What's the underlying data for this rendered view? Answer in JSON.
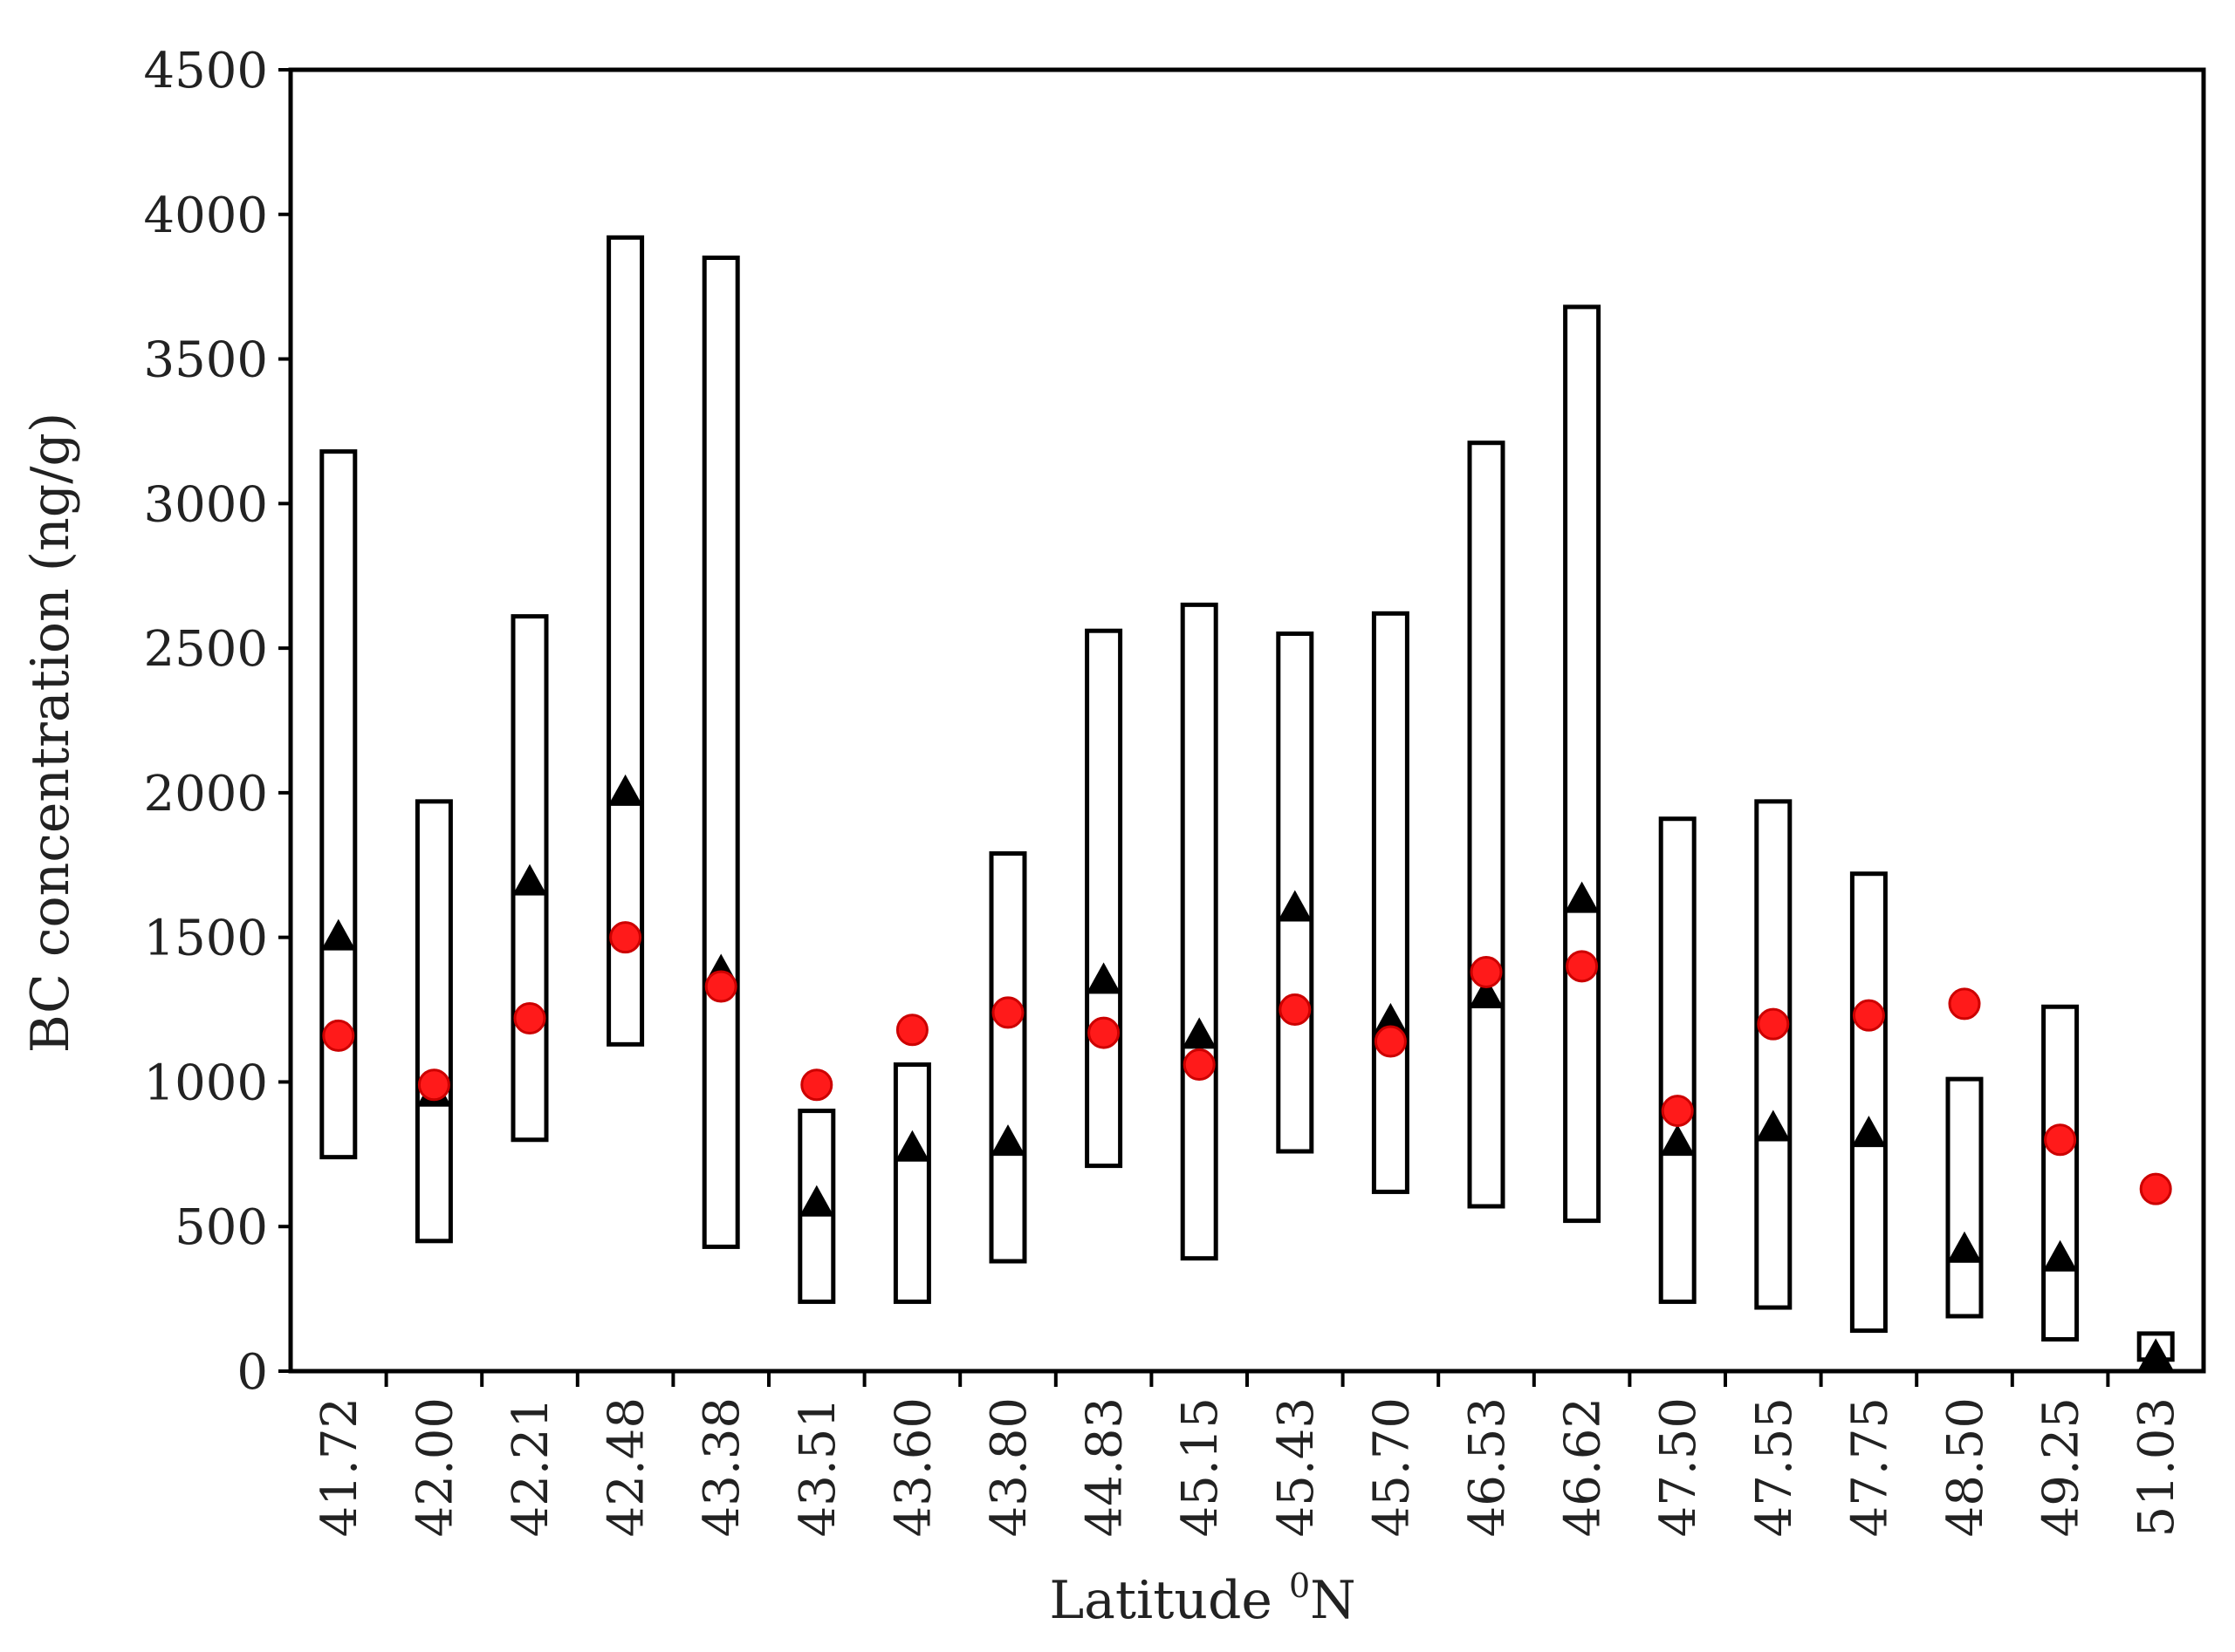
{
  "chart_data": {
    "type": "box-range",
    "xlabel_main": "Latitude ",
    "xlabel_sup": "0",
    "xlabel_end": "N",
    "ylabel": "BC concentration (ng/g)",
    "ylim": [
      0,
      4500
    ],
    "yticks": [
      0,
      500,
      1000,
      1500,
      2000,
      2500,
      3000,
      3500,
      4000,
      4500
    ],
    "grid": false,
    "categories": [
      "41.72",
      "42.00",
      "42.21",
      "42.48",
      "43.38",
      "43.51",
      "43.60",
      "43.80",
      "44.83",
      "45.15",
      "45.43",
      "45.70",
      "46.53",
      "46.62",
      "47.50",
      "47.55",
      "47.75",
      "48.50",
      "49.25",
      "51.03"
    ],
    "series": [
      {
        "kind": "range",
        "min": [
          740,
          450,
          800,
          1130,
          430,
          240,
          240,
          380,
          710,
          390,
          760,
          620,
          570,
          520,
          240,
          220,
          140,
          190,
          110,
          40
        ],
        "max": [
          3180,
          1970,
          2610,
          3920,
          3850,
          900,
          1060,
          1790,
          2560,
          2650,
          2550,
          2620,
          3210,
          3680,
          1910,
          1970,
          1720,
          1010,
          1260,
          130
        ]
      },
      {
        "kind": "triangle",
        "values": [
          1500,
          960,
          1690,
          2000,
          1380,
          580,
          770,
          790,
          1350,
          1160,
          1600,
          1210,
          1300,
          1630,
          790,
          840,
          820,
          420,
          390,
          50
        ]
      },
      {
        "kind": "circle",
        "values": [
          1160,
          990,
          1220,
          1500,
          1330,
          990,
          1180,
          1240,
          1170,
          1060,
          1250,
          1140,
          1380,
          1400,
          900,
          1200,
          1230,
          1270,
          800,
          630
        ]
      }
    ],
    "colors": {
      "range": "#000000",
      "triangle": "#000000",
      "circle": "#ff1a1a",
      "circle_stroke": "#cc0000"
    }
  }
}
